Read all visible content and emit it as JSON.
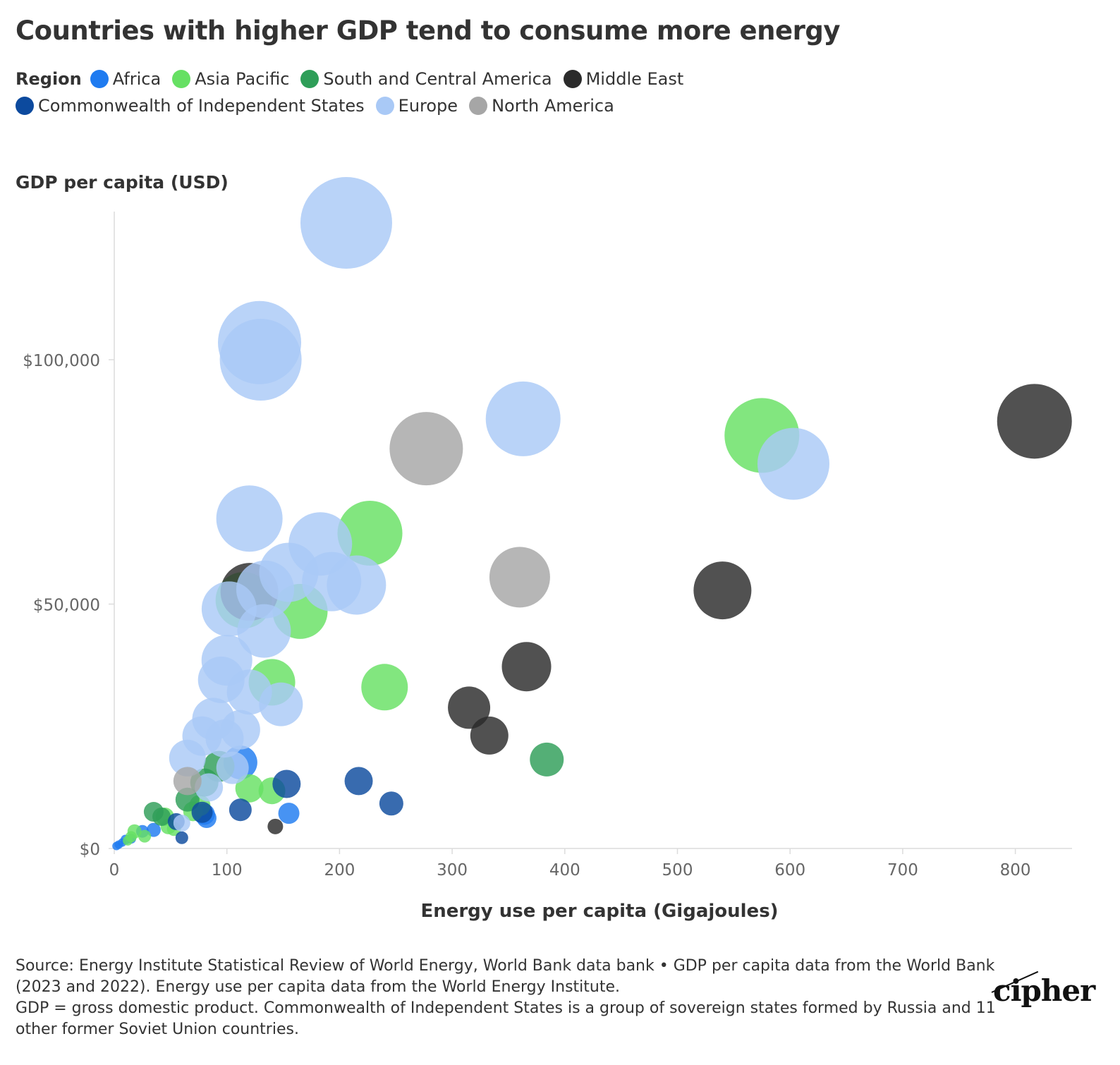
{
  "chart_data": {
    "type": "scatter",
    "title": "Countries with higher GDP tend to consume more energy",
    "xlabel": "Energy use per capita (Gigajoules)",
    "ylabel": "GDP per capita (USD)",
    "legend_title": "Region",
    "legend_position": "top",
    "xlim": [
      0,
      850
    ],
    "ylim": [
      0,
      130000
    ],
    "x_ticks": [
      0,
      100,
      200,
      300,
      400,
      500,
      600,
      700,
      800
    ],
    "x_tick_labels": [
      "0",
      "100",
      "200",
      "300",
      "400",
      "500",
      "600",
      "700",
      "800"
    ],
    "y_ticks": [
      0,
      50000,
      100000
    ],
    "y_tick_labels": [
      "$0",
      "$50,000",
      "$100,000"
    ],
    "grid": false,
    "series": [
      {
        "name": "Africa",
        "color": "#1f7bf0",
        "points": [
          {
            "x": 2,
            "y": 500,
            "r": 6
          },
          {
            "x": 4,
            "y": 800,
            "r": 6
          },
          {
            "x": 7,
            "y": 1200,
            "r": 6
          },
          {
            "x": 10,
            "y": 1800,
            "r": 7
          },
          {
            "x": 15,
            "y": 2000,
            "r": 7
          },
          {
            "x": 25,
            "y": 3500,
            "r": 9
          },
          {
            "x": 35,
            "y": 3800,
            "r": 10
          },
          {
            "x": 80,
            "y": 7000,
            "r": 15
          },
          {
            "x": 82,
            "y": 6200,
            "r": 14
          },
          {
            "x": 112,
            "y": 17600,
            "r": 24
          },
          {
            "x": 155,
            "y": 7200,
            "r": 15
          }
        ]
      },
      {
        "name": "Asia Pacific",
        "color": "#66e063",
        "points": [
          {
            "x": 12,
            "y": 1600,
            "r": 7
          },
          {
            "x": 15,
            "y": 2400,
            "r": 8
          },
          {
            "x": 18,
            "y": 3500,
            "r": 10
          },
          {
            "x": 27,
            "y": 2500,
            "r": 9
          },
          {
            "x": 45,
            "y": 6500,
            "r": 13
          },
          {
            "x": 48,
            "y": 4500,
            "r": 11
          },
          {
            "x": 53,
            "y": 4000,
            "r": 10
          },
          {
            "x": 70,
            "y": 7600,
            "r": 14
          },
          {
            "x": 76,
            "y": 8800,
            "r": 15
          },
          {
            "x": 120,
            "y": 12300,
            "r": 20
          },
          {
            "x": 140,
            "y": 11800,
            "r": 19
          },
          {
            "x": 140,
            "y": 34000,
            "r": 33
          },
          {
            "x": 240,
            "y": 33000,
            "r": 33
          },
          {
            "x": 165,
            "y": 48500,
            "r": 39
          },
          {
            "x": 115,
            "y": 50800,
            "r": 40
          },
          {
            "x": 227,
            "y": 64500,
            "r": 46
          },
          {
            "x": 575,
            "y": 84500,
            "r": 53
          }
        ]
      },
      {
        "name": "South and Central America",
        "color": "#2e9e58",
        "points": [
          {
            "x": 35,
            "y": 7500,
            "r": 14
          },
          {
            "x": 42,
            "y": 6500,
            "r": 13
          },
          {
            "x": 65,
            "y": 10000,
            "r": 17
          },
          {
            "x": 80,
            "y": 13500,
            "r": 20
          },
          {
            "x": 93,
            "y": 16800,
            "r": 22
          },
          {
            "x": 384,
            "y": 18200,
            "r": 24
          }
        ]
      },
      {
        "name": "Middle East",
        "color": "#2b2b2b",
        "points": [
          {
            "x": 143,
            "y": 4500,
            "r": 11
          },
          {
            "x": 315,
            "y": 28800,
            "r": 30
          },
          {
            "x": 333,
            "y": 23100,
            "r": 27
          },
          {
            "x": 366,
            "y": 37200,
            "r": 35
          },
          {
            "x": 540,
            "y": 52800,
            "r": 41
          },
          {
            "x": 817,
            "y": 87400,
            "r": 53
          },
          {
            "x": 120,
            "y": 52500,
            "r": 41
          }
        ]
      },
      {
        "name": "Commonwealth of Independent States",
        "color": "#0c4a9e",
        "points": [
          {
            "x": 55,
            "y": 5500,
            "r": 12
          },
          {
            "x": 60,
            "y": 2200,
            "r": 9
          },
          {
            "x": 78,
            "y": 7400,
            "r": 15
          },
          {
            "x": 112,
            "y": 7900,
            "r": 16
          },
          {
            "x": 153,
            "y": 13200,
            "r": 20
          },
          {
            "x": 217,
            "y": 13800,
            "r": 20
          },
          {
            "x": 246,
            "y": 9200,
            "r": 17
          }
        ]
      },
      {
        "name": "Europe",
        "color": "#a9c9f6",
        "points": [
          {
            "x": 60,
            "y": 5200,
            "r": 12
          },
          {
            "x": 65,
            "y": 18500,
            "r": 26
          },
          {
            "x": 78,
            "y": 23000,
            "r": 28
          },
          {
            "x": 84,
            "y": 12500,
            "r": 20
          },
          {
            "x": 88,
            "y": 26500,
            "r": 30
          },
          {
            "x": 95,
            "y": 34500,
            "r": 33
          },
          {
            "x": 98,
            "y": 22500,
            "r": 27
          },
          {
            "x": 105,
            "y": 16500,
            "r": 23
          },
          {
            "x": 100,
            "y": 38500,
            "r": 36
          },
          {
            "x": 102,
            "y": 49000,
            "r": 39
          },
          {
            "x": 112,
            "y": 24300,
            "r": 28
          },
          {
            "x": 120,
            "y": 32000,
            "r": 32
          },
          {
            "x": 120,
            "y": 67500,
            "r": 47
          },
          {
            "x": 130,
            "y": 100000,
            "r": 58
          },
          {
            "x": 129,
            "y": 103500,
            "r": 59
          },
          {
            "x": 134,
            "y": 53000,
            "r": 41
          },
          {
            "x": 133,
            "y": 44500,
            "r": 38
          },
          {
            "x": 148,
            "y": 29500,
            "r": 31
          },
          {
            "x": 155,
            "y": 56500,
            "r": 42
          },
          {
            "x": 183,
            "y": 62300,
            "r": 45
          },
          {
            "x": 193,
            "y": 54600,
            "r": 42
          },
          {
            "x": 215,
            "y": 53900,
            "r": 42
          },
          {
            "x": 206,
            "y": 128000,
            "r": 65
          },
          {
            "x": 363,
            "y": 87900,
            "r": 53
          },
          {
            "x": 603,
            "y": 78700,
            "r": 51
          }
        ]
      },
      {
        "name": "North America",
        "color": "#a6a6a6",
        "points": [
          {
            "x": 65,
            "y": 13800,
            "r": 20
          },
          {
            "x": 277,
            "y": 81800,
            "r": 52
          },
          {
            "x": 360,
            "y": 55500,
            "r": 43
          }
        ]
      }
    ]
  },
  "footer": {
    "source_line_1": "Source: Energy Institute Statistical Review of World Energy, World Bank data bank • GDP per capita data from the World Bank (2023 and 2022). Energy use per capita data from the World Energy Institute.",
    "source_line_2": "GDP = gross domestic product. Commonwealth of Independent States is a group of sovereign states formed by Russia and 11 other former Soviet Union countries.",
    "brand": "cipher"
  }
}
